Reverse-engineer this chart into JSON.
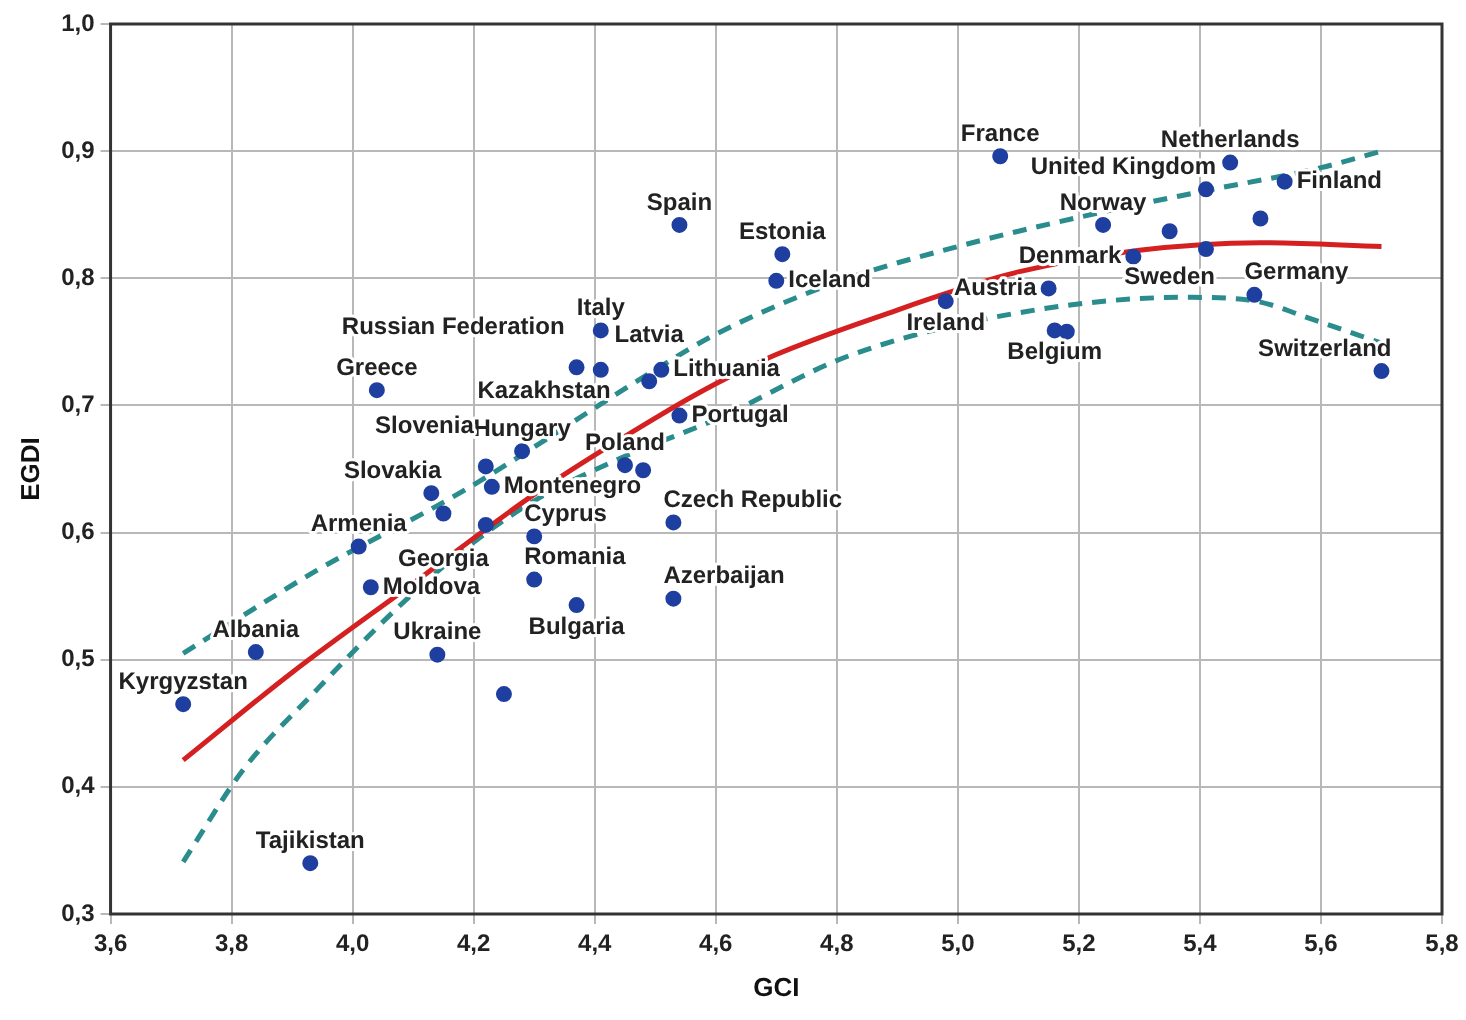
{
  "chart_data": {
    "type": "scatter",
    "xlabel": "GCI",
    "ylabel": "EGDI",
    "xlim": [
      3.6,
      5.8
    ],
    "ylim": [
      0.3,
      1.0
    ],
    "xticks": [
      {
        "value": 3.6,
        "label": "3,6"
      },
      {
        "value": 3.8,
        "label": "3,8"
      },
      {
        "value": 4.0,
        "label": "4,0"
      },
      {
        "value": 4.2,
        "label": "4,2"
      },
      {
        "value": 4.4,
        "label": "4,4"
      },
      {
        "value": 4.6,
        "label": "4,6"
      },
      {
        "value": 4.8,
        "label": "4,8"
      },
      {
        "value": 5.0,
        "label": "5,0"
      },
      {
        "value": 5.2,
        "label": "5,2"
      },
      {
        "value": 5.4,
        "label": "5,4"
      },
      {
        "value": 5.6,
        "label": "5,6"
      },
      {
        "value": 5.8,
        "label": "5,8"
      }
    ],
    "yticks": [
      {
        "value": 0.3,
        "label": "0,3"
      },
      {
        "value": 0.4,
        "label": "0,4"
      },
      {
        "value": 0.5,
        "label": "0,5"
      },
      {
        "value": 0.6,
        "label": "0,6"
      },
      {
        "value": 0.7,
        "label": "0,7"
      },
      {
        "value": 0.8,
        "label": "0,8"
      },
      {
        "value": 0.9,
        "label": "0,9"
      },
      {
        "value": 1.0,
        "label": "1,0"
      }
    ],
    "grid": true,
    "legend": false,
    "marker": "circle",
    "series": [
      {
        "type": "scatter",
        "color": "#1f3fa0",
        "x": [
          3.72,
          3.84,
          3.93,
          4.01,
          4.03,
          4.14,
          4.25,
          4.15,
          4.13,
          4.22,
          4.3,
          4.3,
          4.37,
          4.53,
          4.53,
          4.04,
          4.54,
          4.41,
          4.37,
          4.41,
          4.49,
          4.51,
          4.54,
          4.28,
          4.22,
          4.23,
          4.45,
          4.48,
          4.71,
          4.7,
          5.07,
          5.45,
          5.41,
          5.54,
          5.5,
          5.24,
          5.35,
          5.29,
          5.41,
          5.15,
          4.98,
          5.16,
          5.18,
          5.49,
          5.7
        ],
        "values": [
          0.465,
          0.506,
          0.34,
          0.589,
          0.557,
          0.504,
          0.473,
          0.615,
          0.631,
          0.606,
          0.563,
          0.597,
          0.543,
          0.548,
          0.608,
          0.712,
          0.842,
          0.759,
          0.73,
          0.728,
          0.719,
          0.728,
          0.692,
          0.664,
          0.652,
          0.636,
          0.653,
          0.649,
          0.819,
          0.798,
          0.896,
          0.891,
          0.87,
          0.876,
          0.847,
          0.842,
          0.837,
          0.817,
          0.823,
          0.792,
          0.782,
          0.759,
          0.758,
          0.787,
          0.727
        ]
      },
      {
        "type": "line",
        "color": "#d42020",
        "line_style": "solid",
        "marker": "none",
        "x": [
          3.72,
          3.9,
          4.1,
          4.3,
          4.5,
          4.6,
          4.7,
          4.9,
          5.0,
          5.1,
          5.3,
          5.5,
          5.7
        ],
        "values": [
          0.421,
          0.49,
          0.56,
          0.63,
          0.69,
          0.717,
          0.74,
          0.775,
          0.791,
          0.805,
          0.822,
          0.828,
          0.825
        ]
      },
      {
        "type": "line",
        "color": "#2a8c8c",
        "line_style": "dashed",
        "marker": "none",
        "x": [
          3.72,
          3.94,
          4.18,
          4.51,
          4.6,
          4.8,
          5.0,
          5.2,
          5.4,
          5.6,
          5.7
        ],
        "values": [
          0.505,
          0.57,
          0.632,
          0.731,
          0.756,
          0.797,
          0.825,
          0.848,
          0.868,
          0.887,
          0.9
        ]
      },
      {
        "type": "line",
        "color": "#2a8c8c",
        "line_style": "dashed",
        "marker": "none",
        "x": [
          3.72,
          3.82,
          3.94,
          4.07,
          4.18,
          4.3,
          4.45,
          4.6,
          4.82,
          5.09,
          5.37,
          5.48,
          5.59,
          5.7
        ],
        "values": [
          0.341,
          0.414,
          0.476,
          0.539,
          0.585,
          0.625,
          0.66,
          0.689,
          0.739,
          0.772,
          0.785,
          0.783,
          0.767,
          0.749
        ]
      }
    ],
    "annotations": [
      {
        "text": "Kyrgyzstan",
        "x": 3.72,
        "y": 0.465
      },
      {
        "text": "Albania",
        "x": 3.84,
        "y": 0.506
      },
      {
        "text": "Tajikistan",
        "x": 3.93,
        "y": 0.34
      },
      {
        "text": "Armenia",
        "x": 4.01,
        "y": 0.589
      },
      {
        "text": "Moldova",
        "x": 4.03,
        "y": 0.557
      },
      {
        "text": "Ukraine",
        "x": 4.14,
        "y": 0.504
      },
      {
        "text": "Georgia",
        "x": 4.15,
        "y": 0.615
      },
      {
        "text": "Slovakia",
        "x": 4.13,
        "y": 0.631
      },
      {
        "text": "Cyprus",
        "x": 4.3,
        "y": 0.597
      },
      {
        "text": "Romania",
        "x": 4.3,
        "y": 0.563
      },
      {
        "text": "Bulgaria",
        "x": 4.37,
        "y": 0.543
      },
      {
        "text": "Azerbaijan",
        "x": 4.53,
        "y": 0.548
      },
      {
        "text": "Czech Republic",
        "x": 4.53,
        "y": 0.608
      },
      {
        "text": "Greece",
        "x": 4.04,
        "y": 0.712
      },
      {
        "text": "Spain",
        "x": 4.54,
        "y": 0.842
      },
      {
        "text": "Italy",
        "x": 4.41,
        "y": 0.759
      },
      {
        "text": "Russian Federation",
        "x": 4.37,
        "y": 0.73
      },
      {
        "text": "Kazakhstan",
        "x": 4.41,
        "y": 0.728
      },
      {
        "text": "Latvia",
        "x": 4.49,
        "y": 0.719
      },
      {
        "text": "Lithuania",
        "x": 4.51,
        "y": 0.728
      },
      {
        "text": "Portugal",
        "x": 4.54,
        "y": 0.692
      },
      {
        "text": "Hungary",
        "x": 4.28,
        "y": 0.664
      },
      {
        "text": "Slovenia",
        "x": 4.22,
        "y": 0.652
      },
      {
        "text": "Montenegro",
        "x": 4.23,
        "y": 0.636
      },
      {
        "text": "Poland",
        "x": 4.45,
        "y": 0.653
      },
      {
        "text": "Estonia",
        "x": 4.71,
        "y": 0.819
      },
      {
        "text": "Iceland",
        "x": 4.7,
        "y": 0.798
      },
      {
        "text": "France",
        "x": 5.07,
        "y": 0.896
      },
      {
        "text": "Netherlands",
        "x": 5.45,
        "y": 0.891
      },
      {
        "text": "United Kingdom",
        "x": 5.41,
        "y": 0.87
      },
      {
        "text": "Finland",
        "x": 5.54,
        "y": 0.876
      },
      {
        "text": "Norway",
        "x": 5.24,
        "y": 0.842
      },
      {
        "text": "Sweden",
        "x": 5.35,
        "y": 0.837
      },
      {
        "text": "Denmark",
        "x": 5.29,
        "y": 0.817
      },
      {
        "text": "Austria",
        "x": 5.15,
        "y": 0.792
      },
      {
        "text": "Ireland",
        "x": 4.98,
        "y": 0.782
      },
      {
        "text": "Belgium",
        "x": 5.16,
        "y": 0.759
      },
      {
        "text": "Germany",
        "x": 5.49,
        "y": 0.787
      },
      {
        "text": "Switzerland",
        "x": 5.7,
        "y": 0.727
      }
    ]
  }
}
